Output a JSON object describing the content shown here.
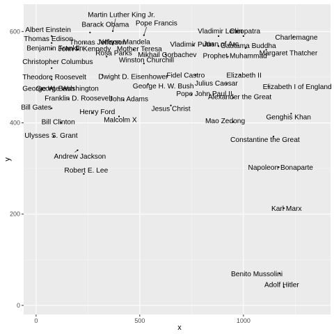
{
  "chart_data": {
    "type": "scatter",
    "xlabel": "x",
    "ylabel": "y",
    "xlim": [
      -60,
      1420
    ],
    "ylim": [
      -20,
      660
    ],
    "xticks": [
      0,
      500,
      1000
    ],
    "yticks": [
      0,
      200,
      400,
      600
    ],
    "grid": true,
    "legend": "none",
    "points": [
      {
        "label": "Martin Luther King Jr.",
        "x": 370,
        "y": 601
      },
      {
        "label": "Barack Obama",
        "x": 260,
        "y": 598
      },
      {
        "label": "Pope Francis",
        "x": 520,
        "y": 592
      },
      {
        "label": "Albert Einstein",
        "x": 75,
        "y": 590
      },
      {
        "label": "Vladimir Lenin",
        "x": 880,
        "y": 590
      },
      {
        "label": "Cleopatra",
        "x": 1000,
        "y": 590
      },
      {
        "label": "Charlemagne",
        "x": 1240,
        "y": 588
      },
      {
        "label": "Thomas Edison",
        "x": 75,
        "y": 575
      },
      {
        "label": "Thomas Jefferson",
        "x": 235,
        "y": 575
      },
      {
        "label": "Nelson Mandela",
        "x": 370,
        "y": 572
      },
      {
        "label": "Vladimir Putin",
        "x": 760,
        "y": 570
      },
      {
        "label": "Joan of Arc",
        "x": 880,
        "y": 568
      },
      {
        "label": "Gautama Buddha",
        "x": 1010,
        "y": 564
      },
      {
        "label": "Benjamin Franklin",
        "x": 75,
        "y": 562
      },
      {
        "label": "John F. Kennedy",
        "x": 200,
        "y": 560
      },
      {
        "label": "Mother Teresa",
        "x": 470,
        "y": 560
      },
      {
        "label": "Margaret Thatcher",
        "x": 1110,
        "y": 560
      },
      {
        "label": "Mikhail Gorbachev",
        "x": 625,
        "y": 550
      },
      {
        "label": "Rosa Parks",
        "x": 340,
        "y": 545
      },
      {
        "label": "Prophet Muhammad",
        "x": 925,
        "y": 545
      },
      {
        "label": "Winston Churchill",
        "x": 520,
        "y": 530
      },
      {
        "label": "Christopher Columbus",
        "x": 75,
        "y": 520
      },
      {
        "label": "Dwight D. Eisenhower",
        "x": 320,
        "y": 505
      },
      {
        "label": "Fidel Castro",
        "x": 770,
        "y": 505
      },
      {
        "label": "Elizabeth II",
        "x": 985,
        "y": 505
      },
      {
        "label": "Theodore Roosevelt",
        "x": 75,
        "y": 495
      },
      {
        "label": "George H. W. Bush",
        "x": 540,
        "y": 485
      },
      {
        "label": "Julius Caesar",
        "x": 920,
        "y": 485
      },
      {
        "label": "Elizabeth I of England",
        "x": 1120,
        "y": 480
      },
      {
        "label": "George Washington",
        "x": 140,
        "y": 475
      },
      {
        "label": "George W. Bush",
        "x": 75,
        "y": 475
      },
      {
        "label": "Pope John Paul II",
        "x": 750,
        "y": 462
      },
      {
        "label": "Alexander the Great",
        "x": 950,
        "y": 455
      },
      {
        "label": "Franklin D. Roosevelt",
        "x": 155,
        "y": 452
      },
      {
        "label": "John Adams",
        "x": 420,
        "y": 450
      },
      {
        "label": "Jesus Christ",
        "x": 650,
        "y": 438
      },
      {
        "label": "Bill Gates",
        "x": 75,
        "y": 432
      },
      {
        "label": "Henry Ford",
        "x": 270,
        "y": 422
      },
      {
        "label": "Genghis Khan",
        "x": 1230,
        "y": 420
      },
      {
        "label": "Malcolm X",
        "x": 400,
        "y": 414
      },
      {
        "label": "Bill Clinton",
        "x": 120,
        "y": 400
      },
      {
        "label": "Mao Zedong",
        "x": 950,
        "y": 402
      },
      {
        "label": "Ulysses S. Grant",
        "x": 85,
        "y": 370
      },
      {
        "label": "Constantine the Great",
        "x": 1145,
        "y": 370
      },
      {
        "label": "Andrew Jackson",
        "x": 200,
        "y": 340
      },
      {
        "label": "Napoleon Bonaparte",
        "x": 1170,
        "y": 303
      },
      {
        "label": "Robert E. Lee",
        "x": 230,
        "y": 288
      },
      {
        "label": "Karl Marx",
        "x": 1195,
        "y": 213
      },
      {
        "label": "Benito Mussolini",
        "x": 1175,
        "y": 70
      },
      {
        "label": "Adolf Hitler",
        "x": 1195,
        "y": 40
      }
    ]
  }
}
